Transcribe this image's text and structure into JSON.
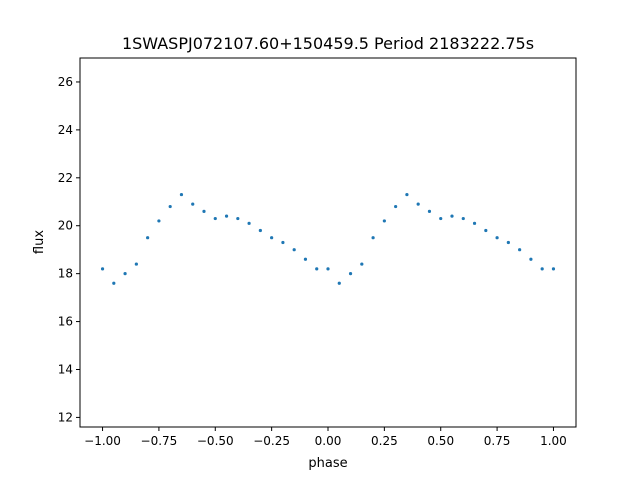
{
  "chart_data": {
    "type": "scatter",
    "title": "1SWASPJ072107.60+150459.5 Period 2183222.75s",
    "xlabel": "phase",
    "ylabel": "flux",
    "xlim": [
      -1.1,
      1.1
    ],
    "ylim": [
      11.6,
      27.0
    ],
    "x_ticks": [
      -1.0,
      -0.75,
      -0.5,
      -0.25,
      0.0,
      0.25,
      0.5,
      0.75,
      1.0
    ],
    "x_tick_labels": [
      "−1.00",
      "−0.75",
      "−0.50",
      "−0.25",
      "0.00",
      "0.25",
      "0.50",
      "0.75",
      "1.00"
    ],
    "y_ticks": [
      12,
      14,
      16,
      18,
      20,
      22,
      24,
      26
    ],
    "y_tick_labels": [
      "12",
      "14",
      "16",
      "18",
      "20",
      "22",
      "24",
      "26"
    ],
    "grid": false,
    "marker_color": "#1f77b4",
    "series": [
      {
        "x": [
          -1.0,
          -0.95,
          -0.9,
          -0.85,
          -0.8,
          -0.75,
          -0.7,
          -0.65,
          -0.6,
          -0.55,
          -0.5,
          -0.45,
          -0.4,
          -0.35,
          -0.3,
          -0.25,
          -0.2,
          -0.15,
          -0.1,
          -0.05,
          0.0,
          0.05,
          0.1,
          0.15,
          0.2,
          0.25,
          0.3,
          0.35,
          0.4,
          0.45,
          0.5,
          0.55,
          0.6,
          0.65,
          0.7,
          0.75,
          0.8,
          0.85,
          0.9,
          0.95,
          1.0
        ],
        "y": [
          18.2,
          17.6,
          18.0,
          18.4,
          19.5,
          20.2,
          20.8,
          21.3,
          20.9,
          20.6,
          20.3,
          20.4,
          20.3,
          20.1,
          19.8,
          19.5,
          19.3,
          19.0,
          18.6,
          18.2,
          18.2,
          17.6,
          18.0,
          18.4,
          19.5,
          20.2,
          20.8,
          21.3,
          20.9,
          20.6,
          20.3,
          20.4,
          20.3,
          20.1,
          19.8,
          19.5,
          19.3,
          19.0,
          18.6,
          18.2,
          18.2
        ]
      }
    ]
  }
}
